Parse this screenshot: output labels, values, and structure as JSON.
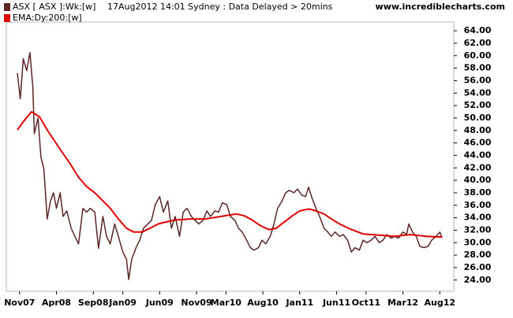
{
  "chart_data": {
    "type": "line",
    "legend_status": "17Aug2012 14:01 Sydney : Data Delayed > 20mins",
    "watermark": "www.incrediblecharts.com",
    "xlim": [
      -1.8,
      58.9
    ],
    "ylim": [
      22.2,
      65.4
    ],
    "xticks": [
      {
        "value": 0,
        "label": "Nov07"
      },
      {
        "value": 5,
        "label": "Apr08"
      },
      {
        "value": 10,
        "label": "Sep08"
      },
      {
        "value": 14,
        "label": "Jan09"
      },
      {
        "value": 19,
        "label": "Jun09"
      },
      {
        "value": 24,
        "label": "Nov09"
      },
      {
        "value": 28,
        "label": "Mar10"
      },
      {
        "value": 33,
        "label": "Aug10"
      },
      {
        "value": 38,
        "label": "Jan11"
      },
      {
        "value": 43,
        "label": "Jun11"
      },
      {
        "value": 47,
        "label": "Oct11"
      },
      {
        "value": 52,
        "label": "Mar12"
      },
      {
        "value": 57,
        "label": "Aug12"
      }
    ],
    "yticks": [
      {
        "value": 24,
        "label": "24.00"
      },
      {
        "value": 26,
        "label": "26.00"
      },
      {
        "value": 28,
        "label": "28.00"
      },
      {
        "value": 30,
        "label": "30.00"
      },
      {
        "value": 32,
        "label": "32.00"
      },
      {
        "value": 34,
        "label": "34.00"
      },
      {
        "value": 36,
        "label": "36.00"
      },
      {
        "value": 38,
        "label": "38.00"
      },
      {
        "value": 40,
        "label": "40.00"
      },
      {
        "value": 42,
        "label": "42.00"
      },
      {
        "value": 44,
        "label": "44.00"
      },
      {
        "value": 46,
        "label": "46.00"
      },
      {
        "value": 48,
        "label": "48.00"
      },
      {
        "value": 50,
        "label": "50.00"
      },
      {
        "value": 52,
        "label": "52.00"
      },
      {
        "value": 54,
        "label": "54.00"
      },
      {
        "value": 56,
        "label": "56.00"
      },
      {
        "value": 58,
        "label": "58.00"
      },
      {
        "value": 60,
        "label": "60.00"
      },
      {
        "value": 62,
        "label": "62.00"
      },
      {
        "value": 64,
        "label": "64.00"
      }
    ],
    "series": [
      {
        "name": "ASX [ ASX ]:Wk:[w]",
        "color": "#5a2626",
        "x": [
          -0.3,
          0.1,
          0.5,
          0.96,
          1.4,
          1.8,
          2.0,
          2.5,
          2.9,
          3.3,
          3.75,
          4.2,
          4.6,
          5.0,
          5.5,
          5.9,
          6.4,
          7.0,
          7.5,
          8.0,
          8.6,
          9.1,
          9.6,
          10.2,
          10.7,
          11.3,
          11.8,
          12.3,
          12.9,
          13.4,
          14.0,
          14.5,
          14.8,
          15.2,
          15.8,
          16.3,
          16.8,
          17.4,
          17.9,
          18.4,
          19.0,
          19.5,
          20.1,
          20.6,
          21.1,
          21.7,
          22.2,
          22.7,
          23.3,
          23.8,
          24.3,
          24.9,
          25.4,
          25.9,
          26.5,
          27.0,
          27.5,
          28.1,
          28.6,
          29.2,
          29.7,
          30.2,
          30.8,
          31.3,
          31.8,
          32.4,
          32.9,
          33.4,
          34.0,
          34.5,
          35.0,
          35.6,
          36.1,
          36.6,
          37.2,
          37.7,
          38.3,
          38.8,
          39.2,
          39.6,
          40.2,
          40.7,
          41.3,
          41.8,
          42.3,
          42.8,
          43.4,
          43.9,
          44.5,
          45.0,
          45.5,
          46.1,
          46.6,
          47.1,
          47.7,
          48.2,
          48.8,
          49.3,
          49.8,
          50.4,
          50.9,
          51.4,
          52.0,
          52.5,
          52.8,
          53.3,
          53.8,
          54.3,
          54.9,
          55.4,
          55.9,
          56.5,
          57.0,
          57.3
        ],
        "values": [
          57.2,
          53.1,
          59.5,
          57.6,
          60.5,
          55.0,
          47.5,
          50.0,
          43.7,
          41.8,
          33.8,
          36.7,
          38.0,
          35.5,
          38.0,
          34.2,
          35.1,
          32.3,
          31.0,
          29.8,
          35.5,
          34.9,
          35.5,
          34.9,
          29.1,
          34.2,
          31.0,
          29.8,
          33.0,
          31.0,
          28.5,
          27.3,
          24.1,
          27.3,
          29.2,
          30.4,
          32.3,
          33.0,
          33.6,
          36.1,
          37.4,
          34.9,
          36.7,
          32.3,
          34.2,
          31.0,
          34.9,
          35.5,
          34.2,
          33.6,
          33.0,
          33.6,
          35.1,
          34.2,
          35.1,
          34.9,
          36.4,
          36.1,
          34.2,
          33.6,
          32.3,
          31.7,
          30.4,
          29.2,
          28.8,
          29.2,
          30.4,
          29.8,
          31.0,
          33.0,
          35.5,
          36.7,
          38.0,
          38.4,
          38.0,
          38.6,
          37.6,
          37.4,
          38.9,
          37.4,
          35.5,
          34.2,
          32.3,
          31.7,
          31.0,
          31.7,
          31.0,
          31.3,
          30.4,
          28.5,
          29.2,
          28.8,
          30.4,
          30.0,
          30.4,
          31.0,
          30.0,
          30.4,
          31.3,
          30.7,
          31.0,
          30.7,
          31.7,
          31.3,
          33.0,
          31.7,
          31.0,
          29.4,
          29.2,
          29.4,
          30.4,
          31.0,
          31.7,
          30.8
        ]
      },
      {
        "name": "EMA:Dy:200:[w]",
        "color": "#e00000",
        "x": [
          -0.3,
          0.5,
          1.6,
          2.7,
          3.75,
          4.8,
          5.9,
          7.0,
          8.0,
          9.1,
          10.2,
          11.3,
          12.3,
          13.4,
          14.5,
          15.5,
          16.6,
          17.7,
          18.8,
          19.8,
          20.9,
          23.0,
          25.2,
          27.3,
          29.4,
          30.5,
          31.6,
          32.7,
          33.8,
          34.8,
          35.9,
          37.0,
          38.0,
          39.3,
          40.2,
          41.3,
          42.3,
          43.4,
          45.0,
          46.6,
          48.8,
          50.9,
          53.0,
          55.2,
          57.3
        ],
        "values": [
          48.1,
          49.4,
          51.0,
          50.2,
          48.1,
          46.2,
          44.3,
          42.4,
          40.5,
          39.0,
          38.0,
          36.7,
          35.5,
          33.8,
          32.3,
          31.7,
          31.7,
          32.3,
          33.0,
          33.3,
          33.6,
          33.8,
          33.8,
          34.2,
          34.6,
          34.3,
          33.6,
          32.7,
          32.1,
          32.3,
          33.3,
          34.3,
          35.1,
          35.4,
          35.1,
          34.6,
          33.8,
          33.0,
          32.1,
          31.4,
          31.2,
          31.0,
          31.3,
          31.0,
          30.9
        ]
      }
    ]
  }
}
